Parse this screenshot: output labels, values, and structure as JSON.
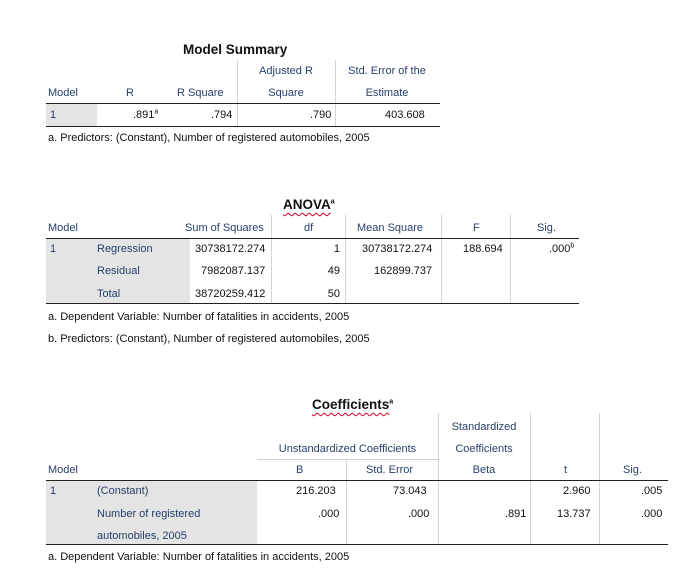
{
  "model_summary": {
    "title": "Model Summary",
    "headers": {
      "model": "Model",
      "r": "R",
      "r_square": "R Square",
      "adj_r_line1": "Adjusted R",
      "adj_r_line2": "Square",
      "se_line1": "Std. Error of the",
      "se_line2": "Estimate"
    },
    "row": {
      "model": "1",
      "r": ".891",
      "r_sup": "a",
      "r_square": ".794",
      "adj_r_square": ".790",
      "std_error": "403.608"
    },
    "footnote": "a. Predictors: (Constant), Number of registered automobiles, 2005"
  },
  "anova": {
    "title": "ANOVA",
    "title_sup": "a",
    "headers": {
      "model": "Model",
      "sum_of_squares": "Sum of Squares",
      "df": "df",
      "mean_square": "Mean Square",
      "f": "F",
      "sig": "Sig."
    },
    "model_number": "1",
    "rows": [
      {
        "label": "Regression",
        "ss": "30738172.274",
        "df": "1",
        "ms": "30738172.274",
        "f": "188.694",
        "sig": ".000",
        "sig_sup": "b"
      },
      {
        "label": "Residual",
        "ss": "7982087.137",
        "df": "49",
        "ms": "162899.737",
        "f": "",
        "sig": "",
        "sig_sup": ""
      },
      {
        "label": "Total",
        "ss": "38720259.412",
        "df": "50",
        "ms": "",
        "f": "",
        "sig": "",
        "sig_sup": ""
      }
    ],
    "footnote_a": "a. Dependent Variable: Number of fatalities in accidents, 2005",
    "footnote_b": "b. Predictors: (Constant), Number of registered automobiles, 2005"
  },
  "coefficients": {
    "title": "Coefficients",
    "title_sup": "a",
    "headers": {
      "model": "Model",
      "unstd": "Unstandardized Coefficients",
      "b": "B",
      "std_error": "Std. Error",
      "std_line1": "Standardized",
      "std_line2": "Coefficients",
      "beta": "Beta",
      "t": "t",
      "sig": "Sig."
    },
    "model_number": "1",
    "rows": [
      {
        "label_line1": "(Constant)",
        "label_line2": "",
        "b": "216.203",
        "se": "73.043",
        "beta": "",
        "t": "2.960",
        "sig": ".005"
      },
      {
        "label_line1": "Number of registered",
        "label_line2": "automobiles, 2005",
        "b": ".000",
        "se": ".000",
        "beta": ".891",
        "t": "13.737",
        "sig": ".000"
      }
    ],
    "footnote": "a. Dependent Variable: Number of fatalities in accidents, 2005"
  }
}
